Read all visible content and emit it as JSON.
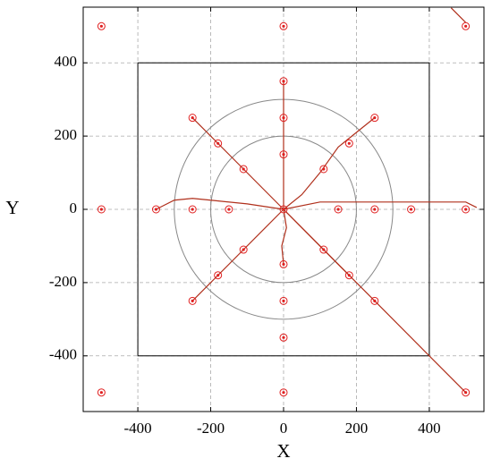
{
  "chart_data": {
    "type": "scatter",
    "x_label": "X",
    "y_label": "Y",
    "xlim": [
      -550,
      550
    ],
    "ylim": [
      -552,
      552
    ],
    "xticks": [
      -400,
      -200,
      0,
      200,
      400
    ],
    "yticks": [
      -400,
      -200,
      0,
      200,
      400
    ],
    "grid": true,
    "reference_circles": [
      200,
      300
    ],
    "reference_square": 400,
    "series": [
      {
        "color": "#e02020",
        "x": [
          -500,
          0,
          500,
          -500,
          500,
          -500,
          0,
          500,
          0,
          0,
          0,
          0,
          0,
          0,
          -350,
          -250,
          -150,
          150,
          250,
          350,
          110,
          180,
          250,
          -110,
          -180,
          -250,
          110,
          180,
          250,
          -110,
          -180,
          -250,
          0
        ],
        "y": [
          500,
          500,
          500,
          0,
          0,
          -500,
          -500,
          -500,
          350,
          250,
          150,
          -150,
          -250,
          -350,
          0,
          0,
          0,
          0,
          0,
          0,
          110,
          180,
          250,
          110,
          180,
          250,
          -110,
          -180,
          -250,
          -110,
          -180,
          -250,
          0
        ]
      }
    ],
    "trajectory_color": "#b0301c",
    "trajectories": [
      {
        "x": [
          0,
          0
        ],
        "y": [
          350,
          0
        ]
      },
      {
        "x": [
          250,
          200,
          150,
          100,
          50,
          0
        ],
        "y": [
          250,
          210,
          170,
          100,
          40,
          0
        ]
      },
      {
        "x": [
          -350,
          -300,
          -250,
          -200,
          -100,
          0
        ],
        "y": [
          0,
          25,
          30,
          25,
          15,
          0
        ]
      },
      {
        "x": [
          0,
          100,
          300,
          500,
          530
        ],
        "y": [
          0,
          20,
          20,
          20,
          5
        ]
      },
      {
        "x": [
          -250,
          0
        ],
        "y": [
          -250,
          0
        ]
      },
      {
        "x": [
          0,
          250,
          400,
          500
        ],
        "y": [
          0,
          -250,
          -400,
          -500
        ]
      },
      {
        "x": [
          -250,
          0
        ],
        "y": [
          250,
          0
        ]
      },
      {
        "x": [
          460,
          500
        ],
        "y": [
          550,
          510
        ]
      },
      {
        "x": [
          0,
          8,
          -5,
          0
        ],
        "y": [
          0,
          -50,
          -100,
          -150
        ]
      },
      {
        "x": [
          0,
          180
        ],
        "y": [
          0,
          -180
        ]
      }
    ]
  }
}
